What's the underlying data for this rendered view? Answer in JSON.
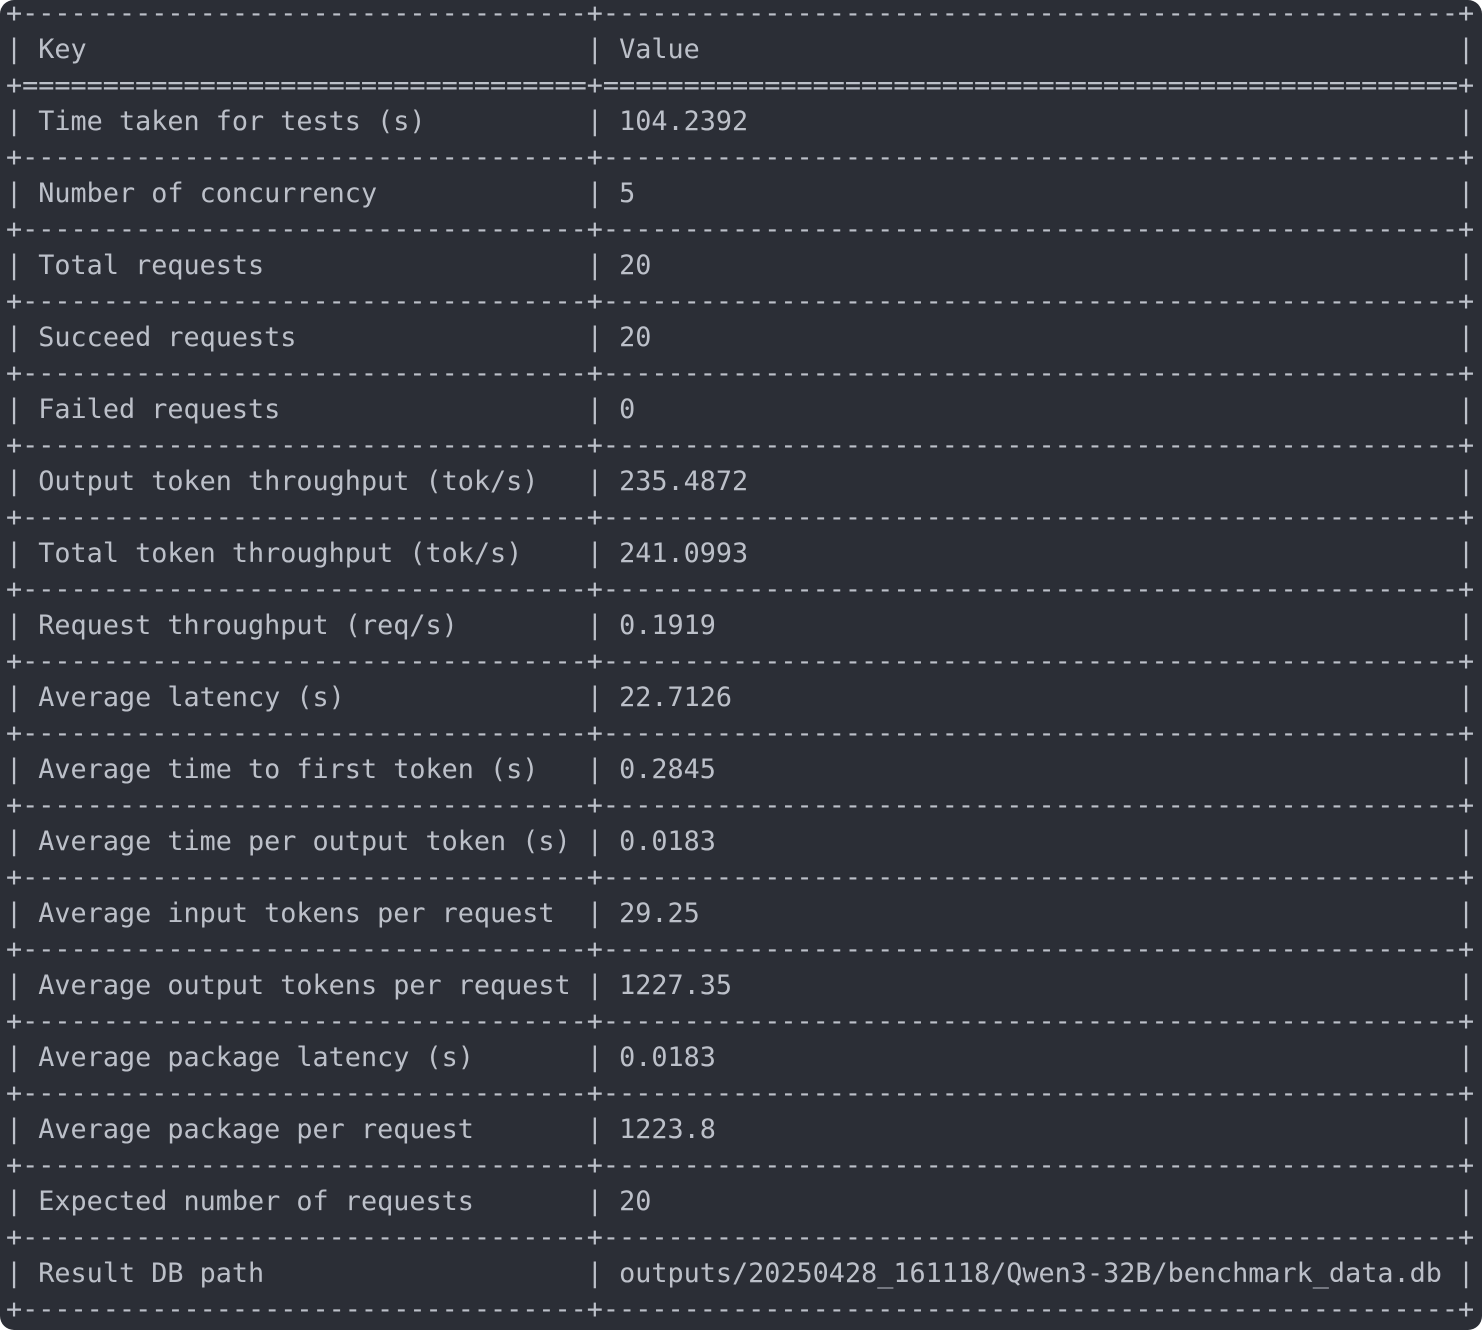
{
  "table": {
    "header": {
      "key": "Key",
      "value": "Value"
    },
    "rows": [
      {
        "key": "Time taken for tests (s)",
        "value": "104.2392"
      },
      {
        "key": "Number of concurrency",
        "value": "5"
      },
      {
        "key": "Total requests",
        "value": "20"
      },
      {
        "key": "Succeed requests",
        "value": "20"
      },
      {
        "key": "Failed requests",
        "value": "0"
      },
      {
        "key": "Output token throughput (tok/s)",
        "value": "235.4872"
      },
      {
        "key": "Total token throughput (tok/s)",
        "value": "241.0993"
      },
      {
        "key": "Request throughput (req/s)",
        "value": "0.1919"
      },
      {
        "key": "Average latency (s)",
        "value": "22.7126"
      },
      {
        "key": "Average time to first token (s)",
        "value": "0.2845"
      },
      {
        "key": "Average time per output token (s)",
        "value": "0.0183"
      },
      {
        "key": "Average input tokens per request",
        "value": "29.25"
      },
      {
        "key": "Average output tokens per request",
        "value": "1227.35"
      },
      {
        "key": "Average package latency (s)",
        "value": "0.0183"
      },
      {
        "key": "Average package per request",
        "value": "1223.8"
      },
      {
        "key": "Expected number of requests",
        "value": "20"
      },
      {
        "key": "Result DB path",
        "value": "outputs/20250428_161118/Qwen3-32B/benchmark_data.db"
      }
    ]
  },
  "colors": {
    "background": "#2b2e36",
    "text": "#bcc0c9"
  }
}
